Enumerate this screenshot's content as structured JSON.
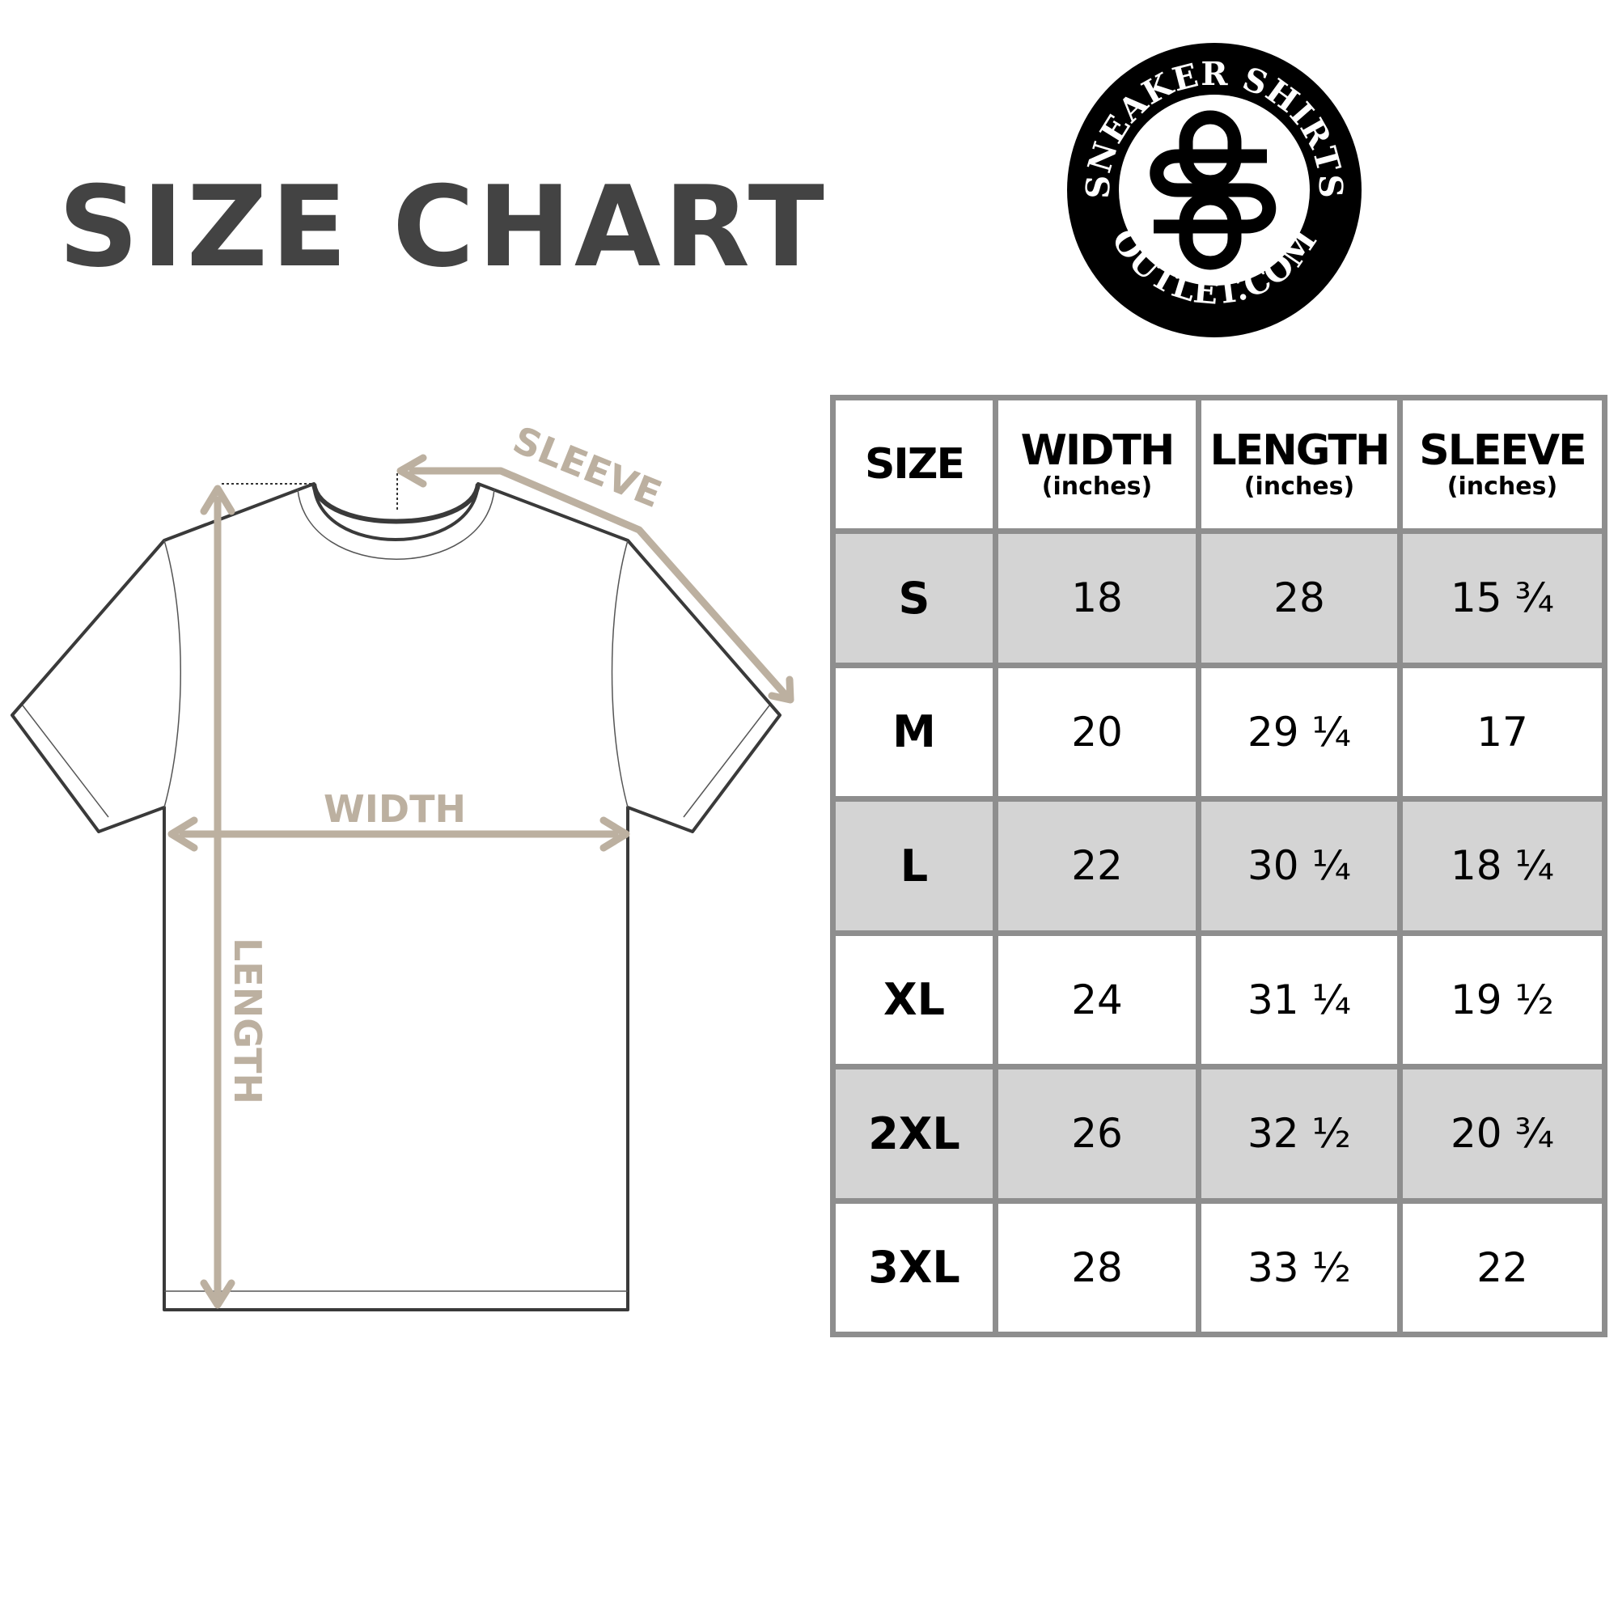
{
  "title": "SIZE CHART",
  "logo": {
    "top_text": "SNEAKER SHIRTS",
    "bottom_text": "OUTLET.COM",
    "monogram": "SO"
  },
  "diagram": {
    "labels": {
      "sleeve": "SLEEVE",
      "width": "WIDTH",
      "length": "LENGTH"
    }
  },
  "colors": {
    "title": "#434343",
    "measure": "#bcb0a0",
    "table_border": "#8e8e8e",
    "row_shade": "#d4d4d4"
  },
  "table": {
    "headers": [
      {
        "main": "SIZE",
        "sub": ""
      },
      {
        "main": "WIDTH",
        "sub": "(inches)"
      },
      {
        "main": "LENGTH",
        "sub": "(inches)"
      },
      {
        "main": "SLEEVE",
        "sub": "(inches)"
      }
    ],
    "rows": [
      [
        "S",
        "18",
        "28",
        "15 ¾"
      ],
      [
        "M",
        "20",
        "29 ¼",
        "17"
      ],
      [
        "L",
        "22",
        "30 ¼",
        "18 ¼"
      ],
      [
        "XL",
        "24",
        "31 ¼",
        "19 ½"
      ],
      [
        "2XL",
        "26",
        "32 ½",
        "20 ¾"
      ],
      [
        "3XL",
        "28",
        "33 ½",
        "22"
      ]
    ]
  }
}
